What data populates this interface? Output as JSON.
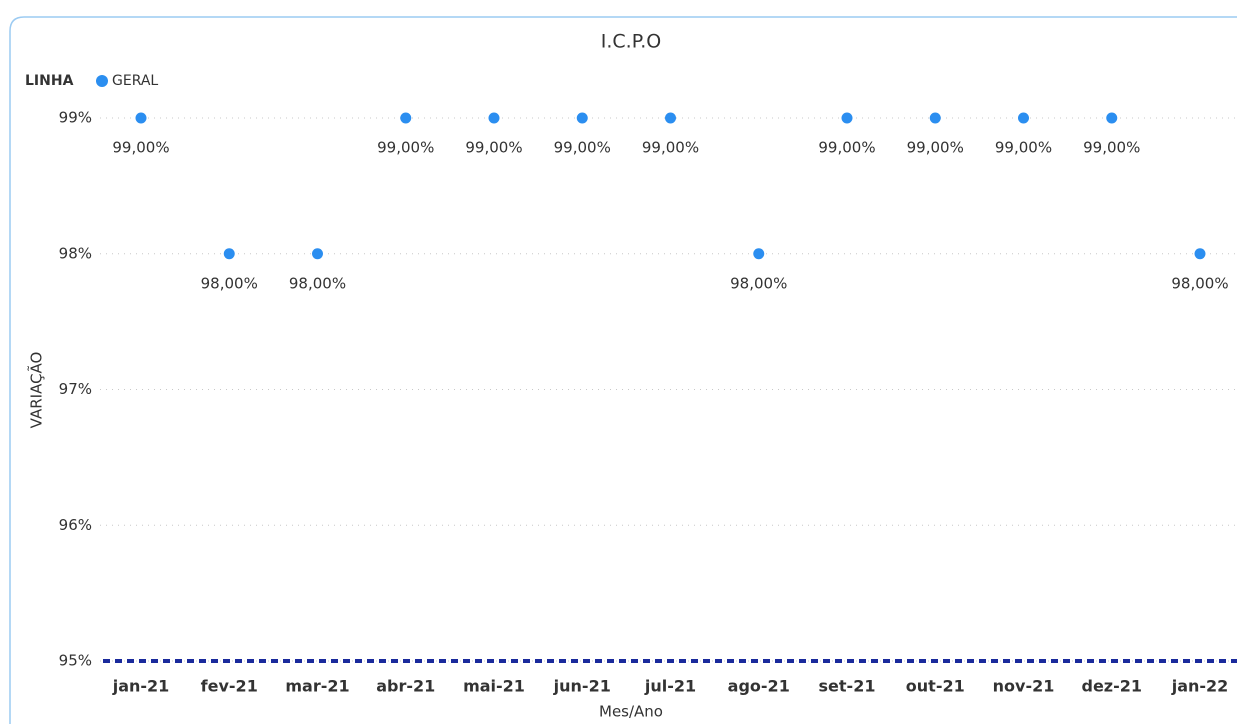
{
  "chart_data": {
    "type": "line",
    "title": "I.C.P.O",
    "legend_title": "LINHA",
    "x_label": "Mes/Ano",
    "y_label": "VARIAÇÃO",
    "categories": [
      "jan-21",
      "fev-21",
      "mar-21",
      "abr-21",
      "mai-21",
      "jun-21",
      "jul-21",
      "ago-21",
      "set-21",
      "out-21",
      "nov-21",
      "dez-21",
      "jan-22"
    ],
    "series": [
      {
        "name": "GERAL",
        "color": "#2b8ef0",
        "values": [
          99,
          98,
          98,
          99,
          99,
          99,
          99,
          98,
          99,
          99,
          99,
          99,
          98
        ],
        "value_labels": [
          "99,00%",
          "98,00%",
          "98,00%",
          "99,00%",
          "99,00%",
          "99,00%",
          "99,00%",
          "98,00%",
          "99,00%",
          "99,00%",
          "99,00%",
          "99,00%",
          "98,00%"
        ]
      }
    ],
    "ylim": [
      95,
      99
    ],
    "yticks": [
      {
        "value": 95,
        "label": "95%"
      },
      {
        "value": 96,
        "label": "96%"
      },
      {
        "value": 97,
        "label": "97%"
      },
      {
        "value": 98,
        "label": "98%"
      },
      {
        "value": 99,
        "label": "99%"
      }
    ],
    "grid": true,
    "legend": "top-left",
    "reference_line": {
      "value": 95,
      "color": "#1a2a9c"
    }
  }
}
